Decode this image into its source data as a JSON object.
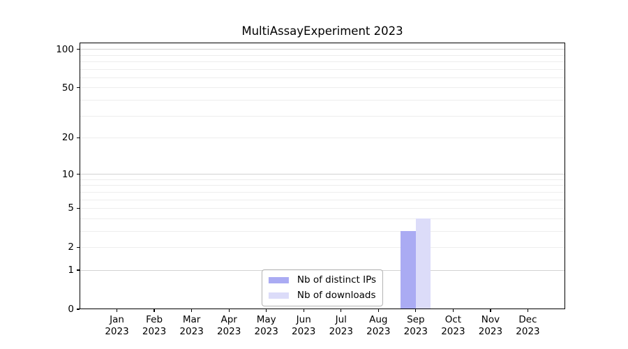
{
  "figure": {
    "background": "#ffffff"
  },
  "chart_data": {
    "type": "bar",
    "title": "MultiAssayExperiment 2023",
    "xlabel": "",
    "ylabel": "",
    "categories": [
      "Jan 2023",
      "Feb 2023",
      "Mar 2023",
      "Apr 2023",
      "May 2023",
      "Jun 2023",
      "Jul 2023",
      "Aug 2023",
      "Sep 2023",
      "Oct 2023",
      "Nov 2023",
      "Dec 2023"
    ],
    "series": [
      {
        "name": "Nb of distinct IPs",
        "color": "#aaabf3",
        "values": [
          0,
          0,
          0,
          0,
          0,
          0,
          0,
          0,
          3,
          0,
          0,
          0
        ]
      },
      {
        "name": "Nb of downloads",
        "color": "#dcdcf9",
        "values": [
          0,
          0,
          0,
          0,
          0,
          0,
          0,
          0,
          4,
          0,
          0,
          0
        ]
      }
    ],
    "yscale": "log1p",
    "ylim": [
      0,
      113
    ],
    "xlim": [
      -1,
      12
    ],
    "yticks": [
      0,
      1,
      2,
      5,
      10,
      20,
      50,
      100
    ],
    "grid_major": [
      1,
      10,
      100
    ],
    "grid_minor": [
      2,
      3,
      4,
      5,
      6,
      7,
      8,
      9,
      20,
      30,
      40,
      50,
      60,
      70,
      80,
      90
    ],
    "grid": "horizontal",
    "legend_position": "lower center",
    "bar_group_width": 0.8,
    "colors": {
      "spine": "#000000",
      "grid_major": "#d2d2d2",
      "grid_minor": "#ededed",
      "legend_border": "#b3b3b3"
    }
  }
}
